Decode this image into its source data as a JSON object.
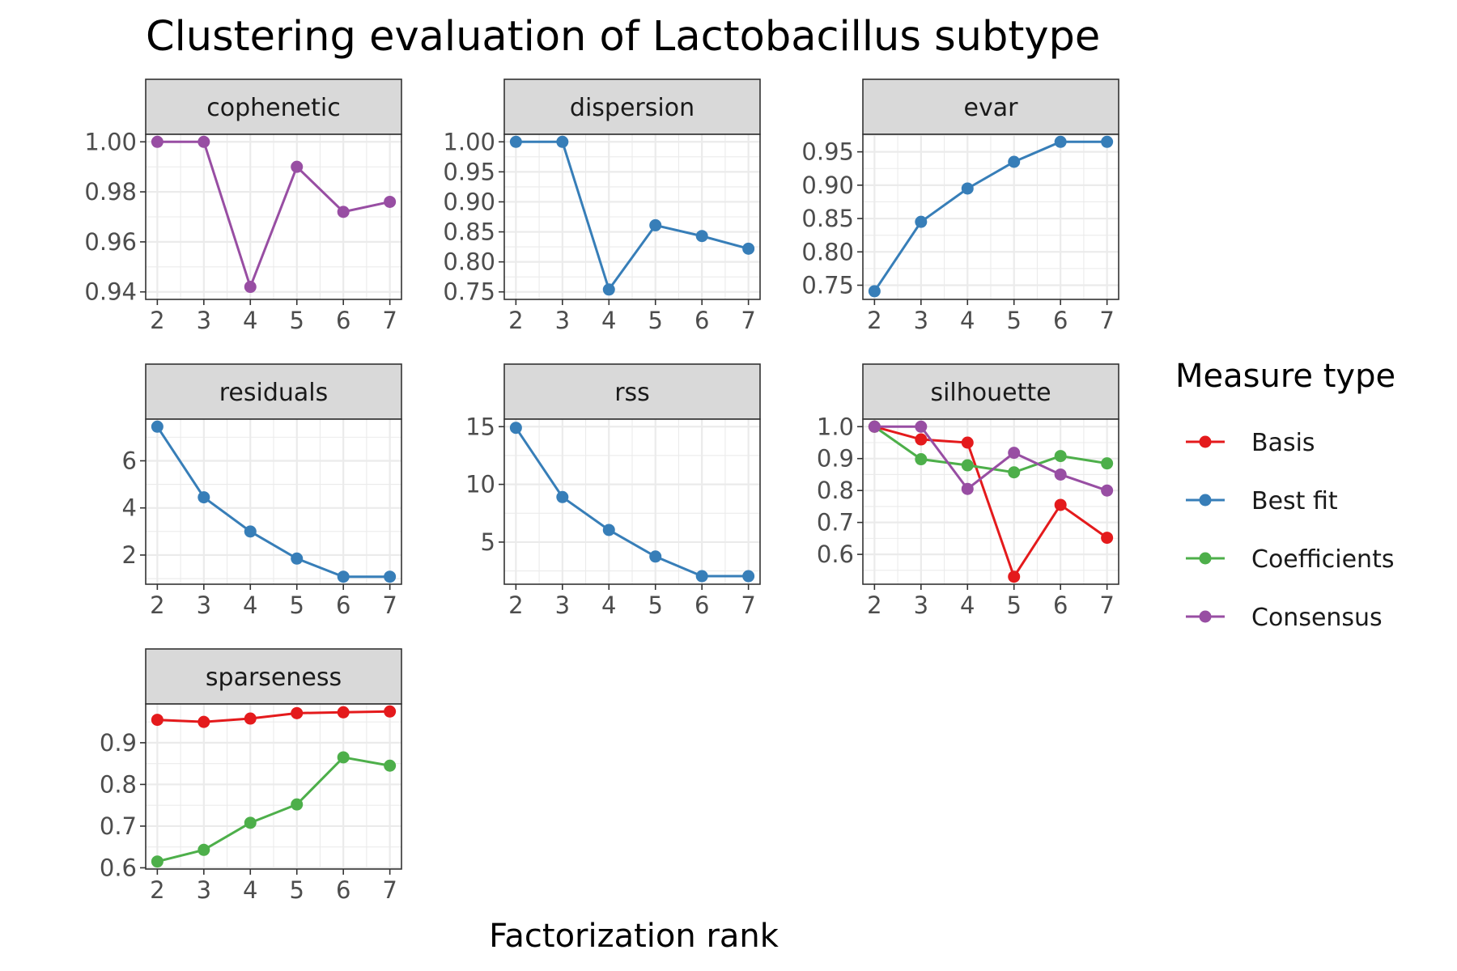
{
  "title": "Clustering evaluation of Lactobacillus subtype",
  "xlabel": "Factorization rank",
  "legend": {
    "title": "Measure type",
    "items": [
      {
        "name": "Basis",
        "color": "#E41A1C"
      },
      {
        "name": "Best fit",
        "color": "#377EB8"
      },
      {
        "name": "Coefficients",
        "color": "#4DAF4A"
      },
      {
        "name": "Consensus",
        "color": "#984EA3"
      }
    ]
  },
  "chart_data": [
    {
      "type": "line",
      "panel": "cophenetic",
      "x": [
        2,
        3,
        4,
        5,
        6,
        7
      ],
      "ylim": [
        0.94,
        1.0
      ],
      "yticks": [
        "0.94",
        "0.96",
        "0.98",
        "1.00"
      ],
      "series": [
        {
          "name": "Consensus",
          "values": [
            1.0,
            1.0,
            0.942,
            0.99,
            0.972,
            0.976
          ]
        }
      ]
    },
    {
      "type": "line",
      "panel": "dispersion",
      "x": [
        2,
        3,
        4,
        5,
        6,
        7
      ],
      "ylim": [
        0.75,
        1.0
      ],
      "yticks": [
        "0.75",
        "0.80",
        "0.85",
        "0.90",
        "0.95",
        "1.00"
      ],
      "series": [
        {
          "name": "Best fit",
          "values": [
            1.0,
            1.0,
            0.754,
            0.861,
            0.843,
            0.822
          ]
        }
      ]
    },
    {
      "type": "line",
      "panel": "evar",
      "x": [
        2,
        3,
        4,
        5,
        6,
        7
      ],
      "ylim": [
        0.74,
        0.965
      ],
      "yticks": [
        "0.75",
        "0.80",
        "0.85",
        "0.90",
        "0.95"
      ],
      "series": [
        {
          "name": "Best fit",
          "values": [
            0.741,
            0.845,
            0.895,
            0.935,
            0.965,
            0.965
          ]
        }
      ]
    },
    {
      "type": "line",
      "panel": "residuals",
      "x": [
        2,
        3,
        4,
        5,
        6,
        7
      ],
      "ylim": [
        1.08,
        7.45
      ],
      "yticks": [
        "2",
        "4",
        "6"
      ],
      "series": [
        {
          "name": "Best fit",
          "values": [
            7.45,
            4.45,
            3.0,
            1.85,
            1.08,
            1.08
          ]
        }
      ]
    },
    {
      "type": "line",
      "panel": "rss",
      "x": [
        2,
        3,
        4,
        5,
        6,
        7
      ],
      "ylim": [
        2.0,
        15.0
      ],
      "yticks": [
        "5",
        "10",
        "15"
      ],
      "series": [
        {
          "name": "Best fit",
          "values": [
            14.9,
            8.9,
            6.05,
            3.75,
            2.05,
            2.05
          ]
        }
      ]
    },
    {
      "type": "line",
      "panel": "silhouette",
      "x": [
        2,
        3,
        4,
        5,
        6,
        7
      ],
      "ylim": [
        0.53,
        1.0
      ],
      "yticks": [
        "0.6",
        "0.7",
        "0.8",
        "0.9",
        "1.0"
      ],
      "series": [
        {
          "name": "Basis",
          "values": [
            1.0,
            0.96,
            0.95,
            0.53,
            0.755,
            0.652
          ]
        },
        {
          "name": "Coefficients",
          "values": [
            1.0,
            0.898,
            0.879,
            0.857,
            0.908,
            0.885
          ]
        },
        {
          "name": "Consensus",
          "values": [
            1.0,
            1.0,
            0.805,
            0.918,
            0.85,
            0.8
          ]
        }
      ]
    },
    {
      "type": "line",
      "panel": "sparseness",
      "x": [
        2,
        3,
        4,
        5,
        6,
        7
      ],
      "ylim": [
        0.615,
        0.975
      ],
      "yticks": [
        "0.6",
        "0.7",
        "0.8",
        "0.9"
      ],
      "series": [
        {
          "name": "Basis",
          "values": [
            0.955,
            0.95,
            0.958,
            0.971,
            0.973,
            0.975
          ]
        },
        {
          "name": "Coefficients",
          "values": [
            0.615,
            0.643,
            0.708,
            0.752,
            0.865,
            0.845
          ]
        }
      ]
    }
  ]
}
